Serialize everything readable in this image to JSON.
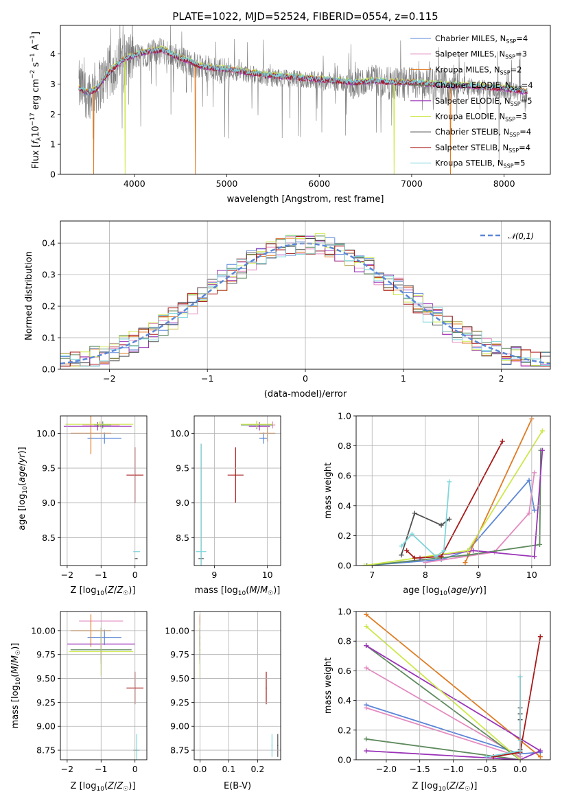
{
  "colors": {
    "Chabrier MILES": "#5B86D8",
    "Salpeter MILES": "#E48AC0",
    "Kroupa MILES": "#E07B22",
    "Chabrier ELODIE": "#5E8A5E",
    "Salpeter ELODIE": "#9A34B8",
    "Kroupa ELODIE": "#CDE84A",
    "Chabrier STELIB": "#505050",
    "Salpeter STELIB": "#A81818",
    "Kroupa STELIB": "#7ED6DC"
  },
  "chart_data": [
    {
      "type": "line",
      "id": "spectrum",
      "title": "PLATE=1022, MJD=52524, FIBERID=0554, z=0.115",
      "xlabel": "wavelength [Angstrom, rest frame]",
      "ylabel": "Flux [f_λ10^-17 erg cm^-2 s^-1 A^-1]",
      "xlim": [
        3200,
        8500
      ],
      "ylim": [
        0,
        4.95
      ],
      "xticks": [
        4000,
        5000,
        6000,
        7000,
        8000
      ],
      "yticks": [
        0,
        1,
        2,
        3,
        4
      ],
      "legend_position": "upper right",
      "legend": [
        {
          "model": "Chabrier MILES",
          "text": "Chabrier MILES, N_SSP=4"
        },
        {
          "model": "Salpeter MILES",
          "text": "Salpeter MILES, N_SSP=3"
        },
        {
          "model": "Kroupa MILES",
          "text": "Kroupa MILES, N_SSP=2"
        },
        {
          "model": "Chabrier ELODIE",
          "text": "Chabrier ELODIE, N_SSP=4"
        },
        {
          "model": "Salpeter ELODIE",
          "text": "Salpeter ELODIE, N_SSP=5"
        },
        {
          "model": "Kroupa ELODIE",
          "text": "Kroupa ELODIE, N_SSP=3"
        },
        {
          "model": "Chabrier STELIB",
          "text": "Chabrier STELIB, N_SSP=4"
        },
        {
          "model": "Salpeter STELIB",
          "text": "Salpeter STELIB, N_SSP=4"
        },
        {
          "model": "Kroupa STELIB",
          "text": "Kroupa STELIB, N_SSP=5"
        }
      ],
      "data_continuum": [
        [
          3400,
          2.9
        ],
        [
          3500,
          2.7
        ],
        [
          3600,
          2.9
        ],
        [
          3700,
          3.3
        ],
        [
          3800,
          3.6
        ],
        [
          3900,
          3.8
        ],
        [
          4000,
          3.9
        ],
        [
          4100,
          4.0
        ],
        [
          4200,
          4.05
        ],
        [
          4300,
          4.1
        ],
        [
          4400,
          4.0
        ],
        [
          4500,
          3.85
        ],
        [
          4600,
          3.7
        ],
        [
          4700,
          3.55
        ],
        [
          4800,
          3.5
        ],
        [
          4900,
          3.45
        ],
        [
          5000,
          3.45
        ],
        [
          5200,
          3.35
        ],
        [
          5400,
          3.25
        ],
        [
          5600,
          3.2
        ],
        [
          5800,
          3.15
        ],
        [
          6000,
          3.15
        ],
        [
          6200,
          3.05
        ],
        [
          6400,
          3.0
        ],
        [
          6600,
          3.1
        ],
        [
          6800,
          3.0
        ],
        [
          7000,
          3.05
        ],
        [
          7200,
          3.0
        ],
        [
          7400,
          2.95
        ],
        [
          7600,
          2.95
        ],
        [
          7800,
          2.85
        ],
        [
          8000,
          2.8
        ],
        [
          8200,
          2.7
        ],
        [
          8250,
          2.7
        ]
      ],
      "model_continuum": [
        [
          3400,
          2.85
        ],
        [
          3500,
          2.7
        ],
        [
          3600,
          2.85
        ],
        [
          3700,
          3.3
        ],
        [
          3800,
          3.6
        ],
        [
          3900,
          3.85
        ],
        [
          4000,
          3.95
        ],
        [
          4100,
          4.05
        ],
        [
          4200,
          4.1
        ],
        [
          4300,
          4.15
        ],
        [
          4400,
          4.0
        ],
        [
          4500,
          3.85
        ],
        [
          4600,
          3.75
        ],
        [
          4700,
          3.6
        ],
        [
          4800,
          3.55
        ],
        [
          4900,
          3.5
        ],
        [
          5000,
          3.5
        ],
        [
          5200,
          3.4
        ],
        [
          5400,
          3.3
        ],
        [
          5600,
          3.25
        ],
        [
          5800,
          3.2
        ],
        [
          6000,
          3.15
        ],
        [
          6200,
          3.1
        ],
        [
          6400,
          3.05
        ],
        [
          6600,
          3.1
        ],
        [
          6800,
          3.05
        ],
        [
          7000,
          3.05
        ],
        [
          7200,
          3.0
        ],
        [
          7400,
          2.95
        ],
        [
          7600,
          2.95
        ],
        [
          7800,
          2.9
        ],
        [
          8000,
          2.85
        ],
        [
          8200,
          2.75
        ],
        [
          8250,
          2.75
        ]
      ]
    },
    {
      "type": "bar",
      "id": "residuals",
      "xlabel": "(data-model)/error",
      "ylabel": "Normed distribution",
      "xlim": [
        -2.5,
        2.5
      ],
      "ylim": [
        0,
        0.47
      ],
      "xticks": [
        -2,
        -1,
        0,
        1,
        2
      ],
      "yticks": [
        0.0,
        0.1,
        0.2,
        0.3,
        0.4
      ],
      "grid": true,
      "reference_label": "𝒩(0,1)",
      "legend_position": "upper right"
    },
    {
      "type": "scatter",
      "id": "age-vs-Z",
      "xlabel": "Z [log10(Z/Z☉)]",
      "ylabel": "age  [log10(age/yr)]",
      "xlim": [
        -2.2,
        0.35
      ],
      "ylim": [
        8.1,
        10.25
      ],
      "xticks": [
        -2,
        -1,
        0
      ],
      "yticks": [
        8.5,
        9.0,
        9.5,
        10.0
      ],
      "grid": true,
      "points": [
        {
          "model": "Chabrier MILES",
          "x": -0.9,
          "y": 9.93,
          "xerr": 0.5,
          "yerr": 0.08
        },
        {
          "model": "Salpeter MILES",
          "x": -1.0,
          "y": 10.12,
          "xerr": 0.55,
          "yerr": 0.05
        },
        {
          "model": "Kroupa MILES",
          "x": -1.3,
          "y": 10.0,
          "xerr": 0.6,
          "yerr": 0.3
        },
        {
          "model": "Chabrier ELODIE",
          "x": -0.95,
          "y": 10.12,
          "xerr": 0.25,
          "yerr": 0.05
        },
        {
          "model": "Salpeter ELODIE",
          "x": -1.1,
          "y": 10.1,
          "xerr": 1.0,
          "yerr": 0.06
        },
        {
          "model": "Kroupa ELODIE",
          "x": -1.05,
          "y": 10.13,
          "xerr": 1.0,
          "yerr": 0.04
        },
        {
          "model": "Chabrier STELIB",
          "x": 0.03,
          "y": 8.2,
          "xerr": 0.05,
          "yerr": 0.0
        },
        {
          "model": "Salpeter STELIB",
          "x": 0.0,
          "y": 9.4,
          "xerr": 0.25,
          "yerr": 0.4
        },
        {
          "model": "Kroupa STELIB",
          "x": 0.05,
          "y": 8.3,
          "xerr": 0.1,
          "yerr": 0.0
        }
      ]
    },
    {
      "type": "scatter",
      "id": "age-vs-mass",
      "xlabel": "mass [log10(M/M☉)]",
      "ylabel": "",
      "xlim": [
        8.62,
        10.25
      ],
      "ylim": [
        8.1,
        10.25
      ],
      "xticks": [
        9,
        10
      ],
      "yticks": [
        8.5,
        9.0,
        9.5,
        10.0
      ],
      "grid": true,
      "points": [
        {
          "model": "Chabrier MILES",
          "x": 9.93,
          "y": 9.93,
          "xerr": 0.08,
          "yerr": 0.08
        },
        {
          "model": "Salpeter MILES",
          "x": 10.1,
          "y": 10.12,
          "xerr": 0.05,
          "yerr": 0.05
        },
        {
          "model": "Kroupa MILES",
          "x": 10.0,
          "y": 10.0,
          "xerr": 0.15,
          "yerr": 0.12
        },
        {
          "model": "Chabrier ELODIE",
          "x": 9.8,
          "y": 10.12,
          "xerr": 0.3,
          "yerr": 0.06
        },
        {
          "model": "Salpeter ELODIE",
          "x": 9.85,
          "y": 10.1,
          "xerr": 0.2,
          "yerr": 0.06
        },
        {
          "model": "Kroupa ELODIE",
          "x": 9.8,
          "y": 10.13,
          "xerr": 0.3,
          "yerr": 0.05
        },
        {
          "model": "Chabrier STELIB",
          "x": 8.75,
          "y": 8.2,
          "xerr": 0.05,
          "yerr": 1.65
        },
        {
          "model": "Salpeter STELIB",
          "x": 9.4,
          "y": 9.4,
          "xerr": 0.15,
          "yerr": 0.4
        },
        {
          "model": "Kroupa STELIB",
          "x": 8.75,
          "y": 8.3,
          "xerr": 0.1,
          "yerr": 1.55
        }
      ]
    },
    {
      "type": "line",
      "id": "weight-vs-age",
      "xlabel": "age  [log10(age/yr)]",
      "ylabel": "mass weight",
      "xlim": [
        6.7,
        10.35
      ],
      "ylim": [
        0,
        1.0
      ],
      "xticks": [
        7,
        8,
        9,
        10
      ],
      "yticks": [
        0.0,
        0.2,
        0.4,
        0.6,
        0.8,
        1.0
      ],
      "grid": true,
      "series": [
        {
          "model": "Chabrier MILES",
          "points": [
            [
              6.9,
              0.0
            ],
            [
              8.3,
              0.04
            ],
            [
              8.8,
              0.1
            ],
            [
              9.95,
              0.57
            ],
            [
              10.05,
              0.37
            ]
          ]
        },
        {
          "model": "Salpeter MILES",
          "points": [
            [
              8.0,
              0.02
            ],
            [
              9.3,
              0.09
            ],
            [
              9.95,
              0.35
            ],
            [
              10.05,
              0.62
            ]
          ]
        },
        {
          "model": "Kroupa MILES",
          "points": [
            [
              8.75,
              0.02
            ],
            [
              10.0,
              0.98
            ]
          ]
        },
        {
          "model": "Chabrier ELODIE",
          "points": [
            [
              6.9,
              0.0
            ],
            [
              8.8,
              0.07
            ],
            [
              10.15,
              0.14
            ],
            [
              10.17,
              0.77
            ]
          ]
        },
        {
          "model": "Salpeter ELODIE",
          "points": [
            [
              7.9,
              0.05
            ],
            [
              8.9,
              0.1
            ],
            [
              10.05,
              0.06
            ],
            [
              10.2,
              0.77
            ]
          ]
        },
        {
          "model": "Kroupa ELODIE",
          "points": [
            [
              6.85,
              0.0
            ],
            [
              8.8,
              0.1
            ],
            [
              10.2,
              0.9
            ]
          ]
        },
        {
          "model": "Chabrier STELIB",
          "points": [
            [
              7.55,
              0.07
            ],
            [
              7.8,
              0.35
            ],
            [
              8.3,
              0.27
            ],
            [
              8.45,
              0.31
            ]
          ]
        },
        {
          "model": "Salpeter STELIB",
          "points": [
            [
              7.65,
              0.1
            ],
            [
              7.8,
              0.05
            ],
            [
              8.3,
              0.06
            ],
            [
              9.45,
              0.83
            ]
          ]
        },
        {
          "model": "Kroupa STELIB",
          "points": [
            [
              7.55,
              0.13
            ],
            [
              7.75,
              0.21
            ],
            [
              8.2,
              0.06
            ],
            [
              8.35,
              0.1
            ],
            [
              8.45,
              0.56
            ]
          ]
        }
      ]
    },
    {
      "type": "scatter",
      "id": "mass-vs-Z",
      "xlabel": "Z [log10(Z/Z☉)]",
      "ylabel": "mass [log10(M/M☉)]",
      "xlim": [
        -2.2,
        0.35
      ],
      "ylim": [
        8.65,
        10.2
      ],
      "xticks": [
        -2,
        -1,
        0
      ],
      "yticks": [
        8.75,
        9.0,
        9.25,
        9.5,
        9.75,
        10.0
      ],
      "grid": true,
      "points": [
        {
          "model": "Chabrier MILES",
          "x": -0.9,
          "y": 9.93,
          "xerr": 0.5,
          "yerr": 0.08
        },
        {
          "model": "Salpeter MILES",
          "x": -1.0,
          "y": 10.1,
          "xerr": 0.65,
          "yerr": 0.0
        },
        {
          "model": "Kroupa MILES",
          "x": -1.3,
          "y": 10.0,
          "xerr": 0.6,
          "yerr": 0.17
        },
        {
          "model": "Chabrier ELODIE",
          "x": -1.0,
          "y": 9.8,
          "xerr": 0.9,
          "yerr": 0.15
        },
        {
          "model": "Salpeter ELODIE",
          "x": -1.0,
          "y": 9.86,
          "xerr": 1.0,
          "yerr": 0.17
        },
        {
          "model": "Kroupa ELODIE",
          "x": -1.0,
          "y": 9.78,
          "xerr": 0.95,
          "yerr": 0.25
        },
        {
          "model": "Chabrier STELIB",
          "x": 0.03,
          "y": 8.75,
          "xerr": 0.08,
          "yerr": 0.0
        },
        {
          "model": "Salpeter STELIB",
          "x": 0.0,
          "y": 9.4,
          "xerr": 0.25,
          "yerr": 0.17
        },
        {
          "model": "Kroupa STELIB",
          "x": 0.05,
          "y": 8.75,
          "xerr": 0.1,
          "yerr": 0.17
        }
      ]
    },
    {
      "type": "scatter",
      "id": "mass-vs-EBV",
      "xlabel": "E(B-V)",
      "ylabel": "",
      "xlim": [
        -0.02,
        0.28
      ],
      "ylim": [
        8.65,
        10.2
      ],
      "xticks": [
        0.0,
        0.1,
        0.2
      ],
      "yticks": [
        8.75,
        9.0,
        9.25,
        9.5,
        9.75,
        10.0
      ],
      "grid": true,
      "points": [
        {
          "model": "Chabrier MILES",
          "x": 0.0,
          "y": 9.93,
          "xerr": 0,
          "yerr": 0.08
        },
        {
          "model": "Salpeter MILES",
          "x": 0.0,
          "y": 10.1,
          "xerr": 0,
          "yerr": 0.05
        },
        {
          "model": "Kroupa MILES",
          "x": 0.0,
          "y": 10.0,
          "xerr": 0,
          "yerr": 0.17
        },
        {
          "model": "Chabrier ELODIE",
          "x": 0.0,
          "y": 9.8,
          "xerr": 0,
          "yerr": 0.15
        },
        {
          "model": "Salpeter ELODIE",
          "x": 0.0,
          "y": 9.86,
          "xerr": 0,
          "yerr": 0.17
        },
        {
          "model": "Kroupa ELODIE",
          "x": 0.0,
          "y": 9.78,
          "xerr": 0,
          "yerr": 0.28
        },
        {
          "model": "Chabrier STELIB",
          "x": 0.27,
          "y": 8.8,
          "xerr": 0,
          "yerr": 0.12
        },
        {
          "model": "Salpeter STELIB",
          "x": 0.23,
          "y": 9.4,
          "xerr": 0,
          "yerr": 0.17
        },
        {
          "model": "Kroupa STELIB",
          "x": 0.25,
          "y": 8.8,
          "xerr": 0,
          "yerr": 0.12
        }
      ]
    },
    {
      "type": "line",
      "id": "weight-vs-Z",
      "xlabel": "Z [log10(Z/Z☉)]",
      "ylabel": "mass weight",
      "xlim": [
        -2.45,
        0.45
      ],
      "ylim": [
        0,
        1.0
      ],
      "xticks": [
        -2.0,
        -1.5,
        -1.0,
        -0.5,
        0.0
      ],
      "yticks": [
        0.0,
        0.2,
        0.4,
        0.6,
        0.8,
        1.0
      ],
      "grid": true,
      "series": [
        {
          "model": "Chabrier MILES",
          "points": [
            [
              -2.3,
              0.37
            ],
            [
              0.0,
              0.04
            ],
            [
              0.3,
              0.05
            ]
          ]
        },
        {
          "model": "Salpeter MILES",
          "points": [
            [
              -2.3,
              0.35
            ],
            [
              0.0,
              0.02
            ],
            [
              -2.3,
              0.62
            ]
          ]
        },
        {
          "model": "Kroupa MILES",
          "points": [
            [
              -2.3,
              0.98
            ],
            [
              0.3,
              0.02
            ]
          ]
        },
        {
          "model": "Chabrier ELODIE",
          "points": [
            [
              -2.3,
              0.14
            ],
            [
              0.0,
              0.0
            ],
            [
              -2.3,
              0.77
            ]
          ]
        },
        {
          "model": "Salpeter ELODIE",
          "points": [
            [
              -2.3,
              0.06
            ],
            [
              0.0,
              0.0
            ],
            [
              0.3,
              0.06
            ],
            [
              -2.3,
              0.77
            ]
          ]
        },
        {
          "model": "Kroupa ELODIE",
          "points": [
            [
              -2.3,
              0.9
            ],
            [
              0.0,
              0.0
            ]
          ]
        },
        {
          "model": "Chabrier STELIB",
          "points": [
            [
              0.0,
              0.07
            ],
            [
              0.0,
              0.35
            ],
            [
              0.0,
              0.27
            ],
            [
              0.0,
              0.31
            ]
          ]
        },
        {
          "model": "Salpeter STELIB",
          "points": [
            [
              -0.4,
              0.02
            ],
            [
              0.0,
              0.05
            ],
            [
              0.3,
              0.83
            ]
          ]
        },
        {
          "model": "Kroupa STELIB",
          "points": [
            [
              0.0,
              0.13
            ],
            [
              0.0,
              0.56
            ],
            [
              0.0,
              0.06
            ],
            [
              -0.5,
              0.02
            ]
          ]
        }
      ]
    }
  ]
}
